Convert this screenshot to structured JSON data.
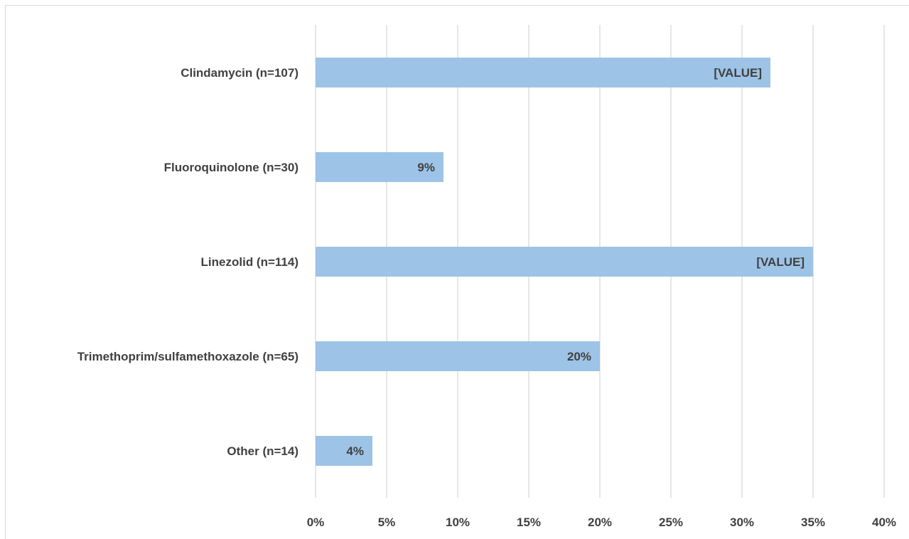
{
  "chart_data": {
    "type": "bar",
    "orientation": "horizontal",
    "title": "",
    "xlabel": "",
    "ylabel": "",
    "categories": [
      "Clindamycin (n=107)",
      "Fluoroquinolone (n=30)",
      "Linezolid (n=114)",
      "Trimethoprim/sulfamethoxazole (n=65)",
      "Other (n=14)"
    ],
    "values": [
      32,
      9,
      35,
      20,
      4
    ],
    "data_labels": [
      "[VALUE]",
      "9%",
      "[VALUE]",
      "20%",
      "4%"
    ],
    "xlim": [
      0,
      40
    ],
    "x_ticks": [
      "0%",
      "5%",
      "10%",
      "15%",
      "20%",
      "25%",
      "30%",
      "35%",
      "40%"
    ],
    "grid": "vertical",
    "legend": "none",
    "colors": {
      "bar": "#9dc3e6",
      "grid": "#d9d9d9",
      "text": "#404040"
    }
  }
}
